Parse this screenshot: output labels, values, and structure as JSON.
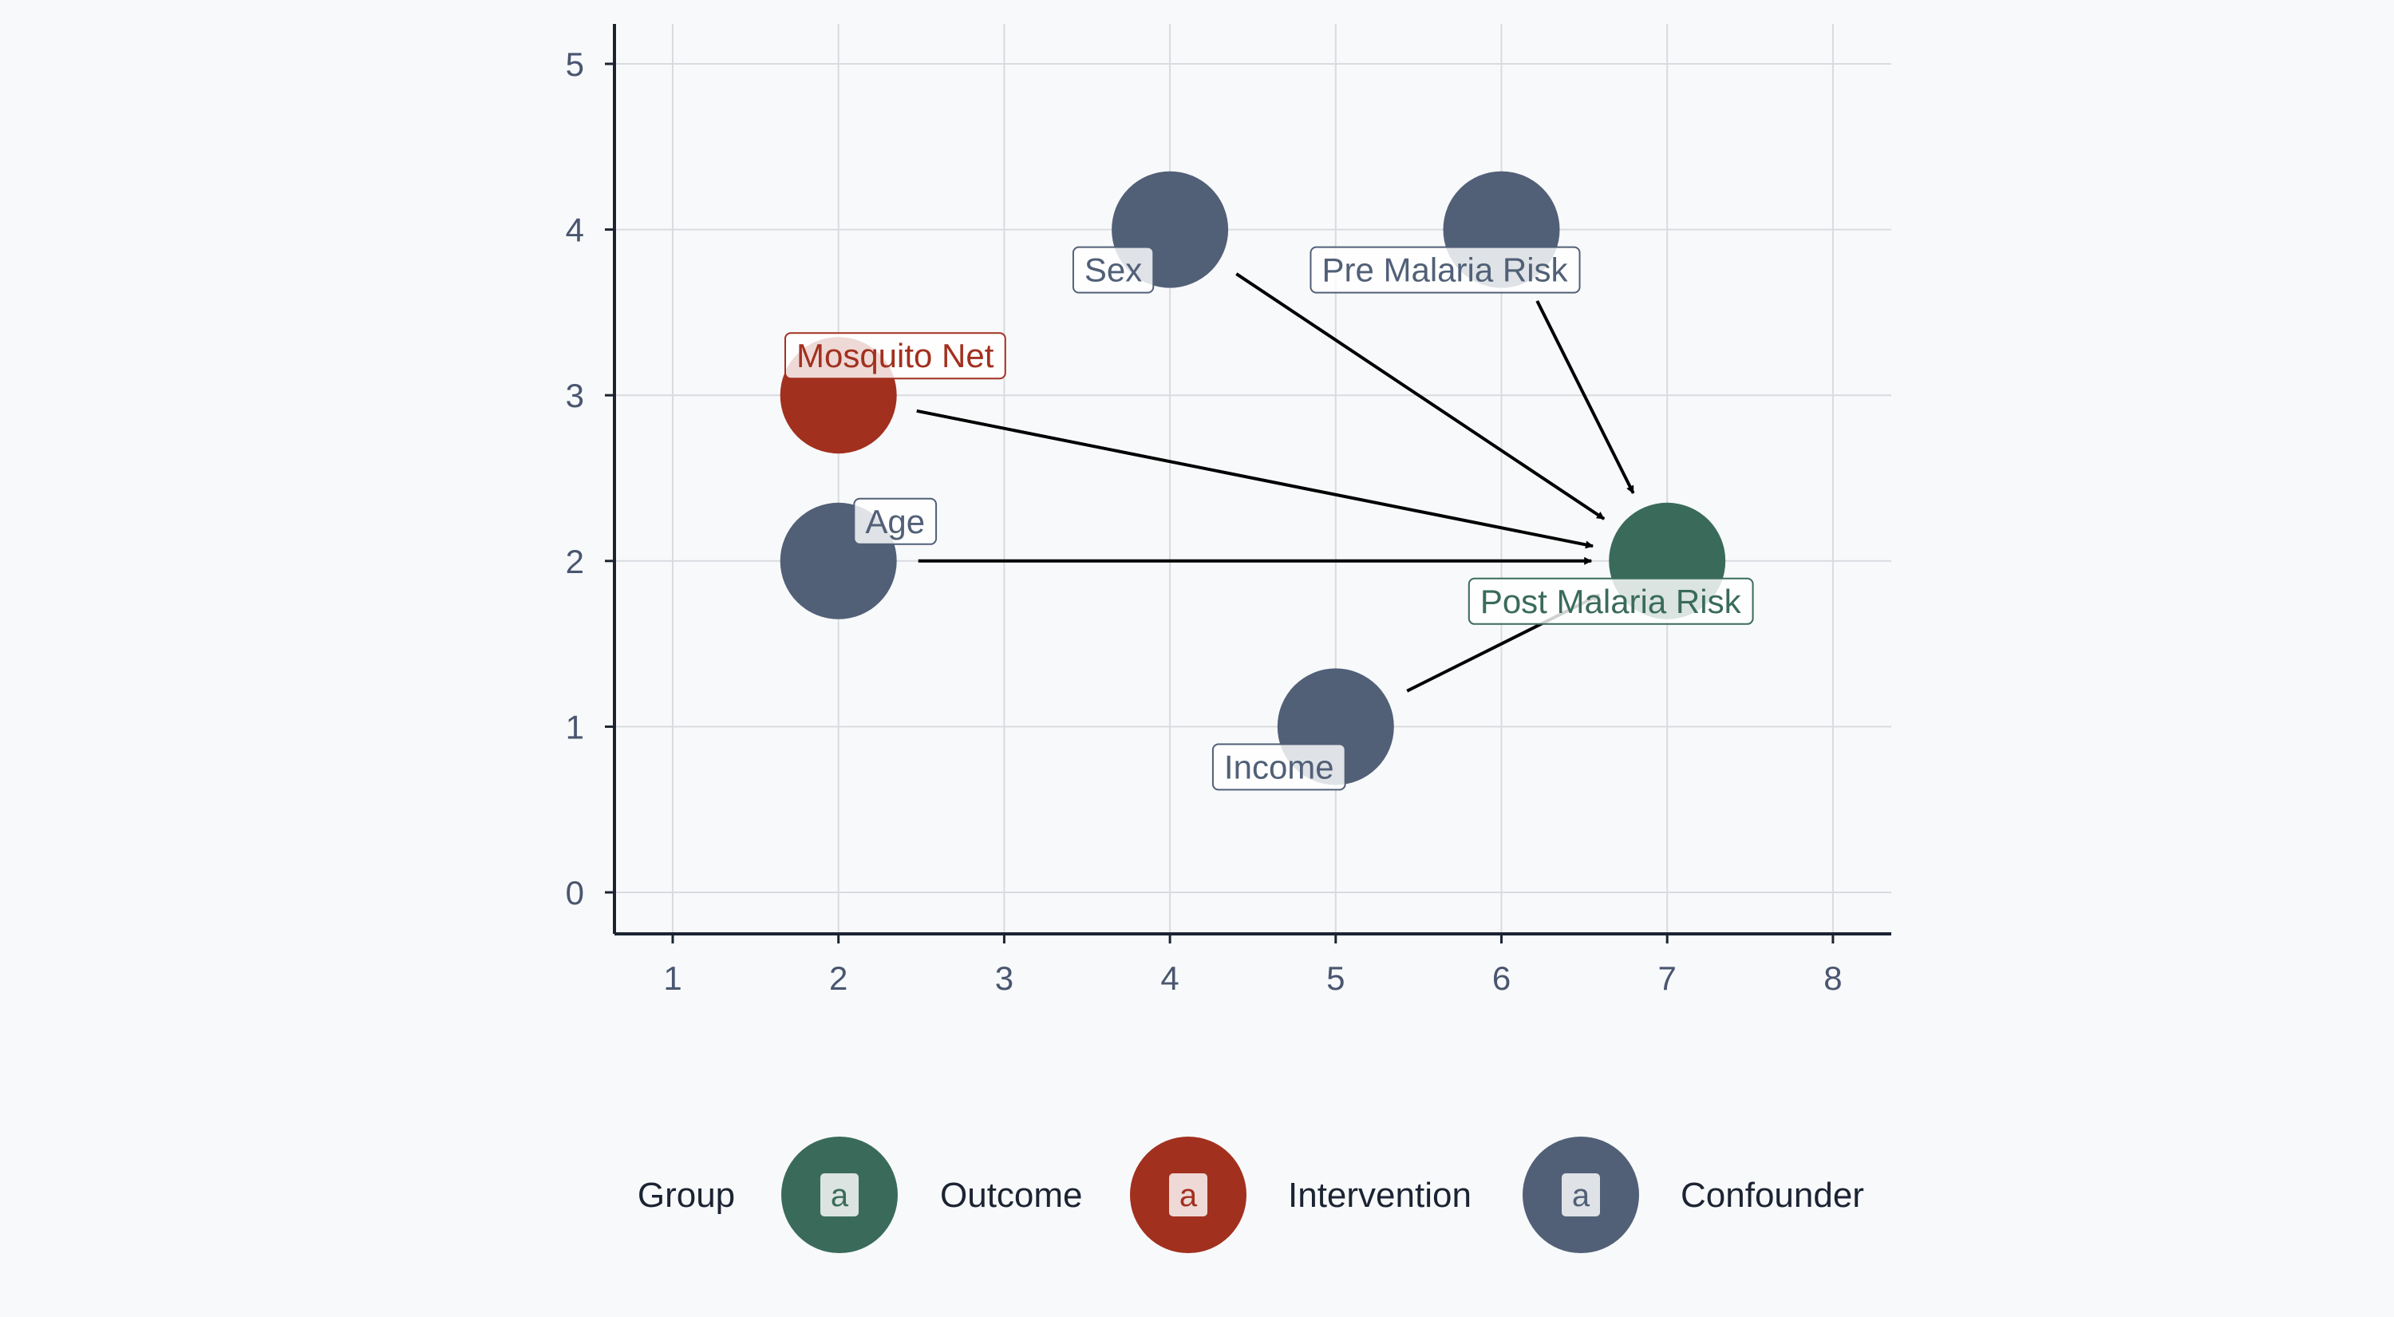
{
  "chart_data": {
    "type": "scatter",
    "title": "",
    "xlabel": "",
    "ylabel": "",
    "xlim": [
      0.6,
      8.35
    ],
    "ylim": [
      -0.25,
      5.25
    ],
    "x_ticks": [
      "1",
      "2",
      "3",
      "4",
      "5",
      "6",
      "7",
      "8"
    ],
    "y_ticks": [
      "0",
      "1",
      "2",
      "3",
      "4",
      "5"
    ],
    "grid": true,
    "colors": {
      "Outcome": "#3a6b5a",
      "Intervention": "#a2301f",
      "Confounder": "#516077",
      "arrow": "#000000",
      "grid": "#d8dbe0",
      "axis": "#1c2433"
    },
    "nodes": [
      {
        "name": "Sex",
        "x": 4,
        "y": 4,
        "group": "Confounder"
      },
      {
        "name": "Pre Malaria Risk",
        "x": 6,
        "y": 4,
        "group": "Confounder"
      },
      {
        "name": "Mosquito Net",
        "x": 2,
        "y": 3,
        "group": "Intervention"
      },
      {
        "name": "Age",
        "x": 2,
        "y": 2,
        "group": "Confounder"
      },
      {
        "name": "Post Malaria Risk",
        "x": 7,
        "y": 2,
        "group": "Outcome"
      },
      {
        "name": "Income",
        "x": 5,
        "y": 1,
        "group": "Confounder"
      }
    ],
    "edges": [
      {
        "from": "Sex",
        "to": "Post Malaria Risk"
      },
      {
        "from": "Pre Malaria Risk",
        "to": "Post Malaria Risk"
      },
      {
        "from": "Mosquito Net",
        "to": "Post Malaria Risk"
      },
      {
        "from": "Age",
        "to": "Post Malaria Risk"
      },
      {
        "from": "Income",
        "to": "Post Malaria Risk"
      }
    ],
    "legend": {
      "title": "Group",
      "placement": "bottom",
      "key_glyph": "a",
      "entries": [
        "Outcome",
        "Intervention",
        "Confounder"
      ]
    }
  }
}
